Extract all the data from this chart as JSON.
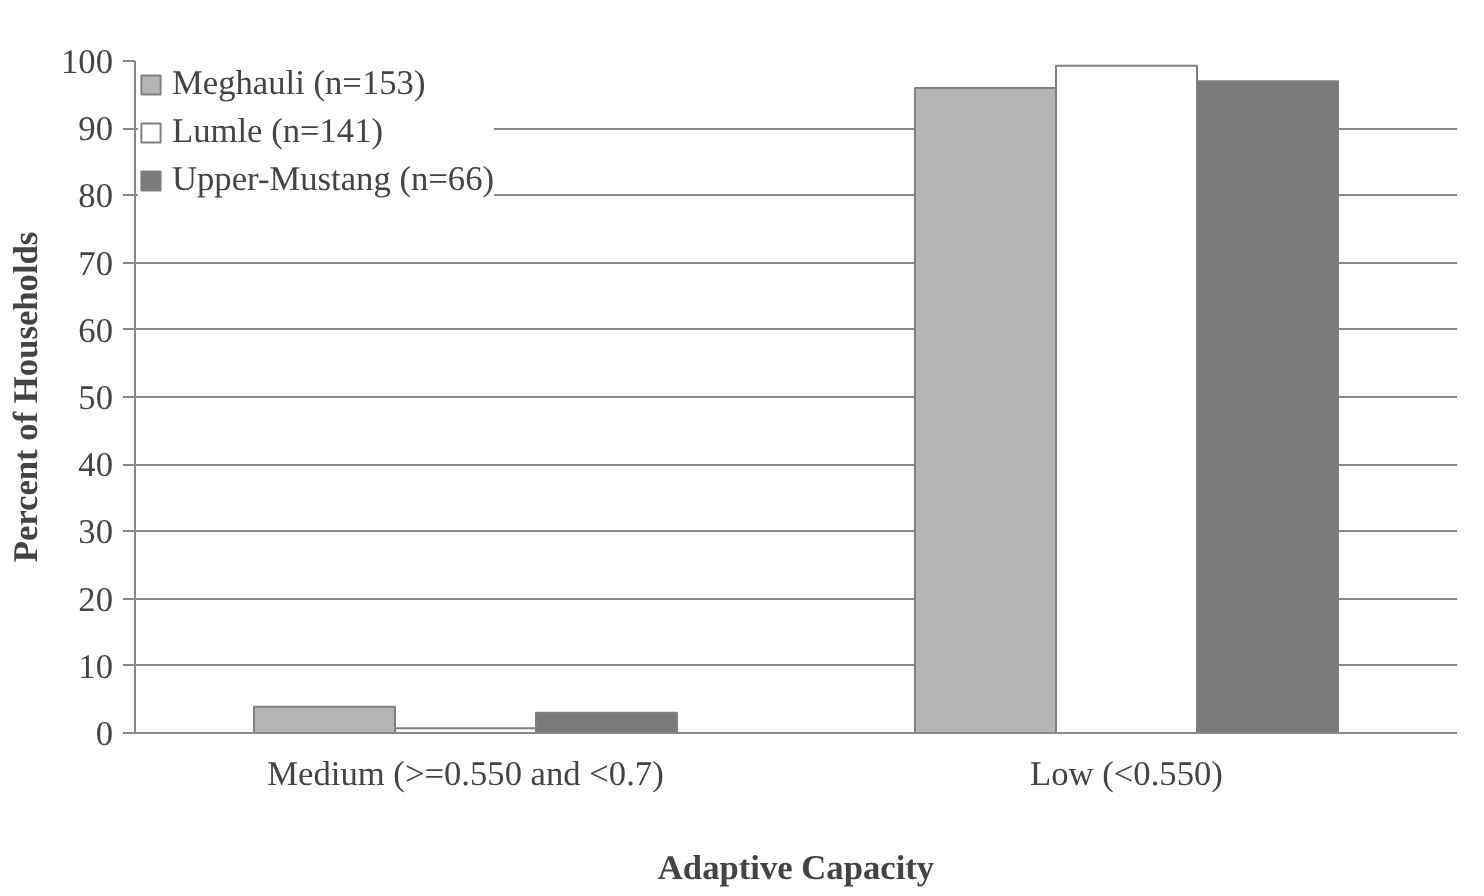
{
  "chart_data": {
    "type": "bar",
    "xlabel": "Adaptive Capacity",
    "ylabel": "Percent of Households",
    "categories": [
      "Medium (>=0.550 and <0.7)",
      "Low (<0.550)"
    ],
    "series": [
      {
        "name": "Meghauli (n=153)",
        "color": "#b4b4b4",
        "values": [
          3.9,
          96
        ]
      },
      {
        "name": "Lumle (n=141)",
        "color": "#ffffff",
        "values": [
          0.7,
          99.3
        ]
      },
      {
        "name": "Upper-Mustang (n=66)",
        "color": "#7a7a7a",
        "values": [
          3,
          97
        ]
      }
    ],
    "ylim": [
      0,
      100
    ],
    "yticks": [
      0,
      10,
      20,
      30,
      40,
      50,
      60,
      70,
      80,
      90,
      100
    ],
    "grid": "y",
    "legend": "top left"
  }
}
